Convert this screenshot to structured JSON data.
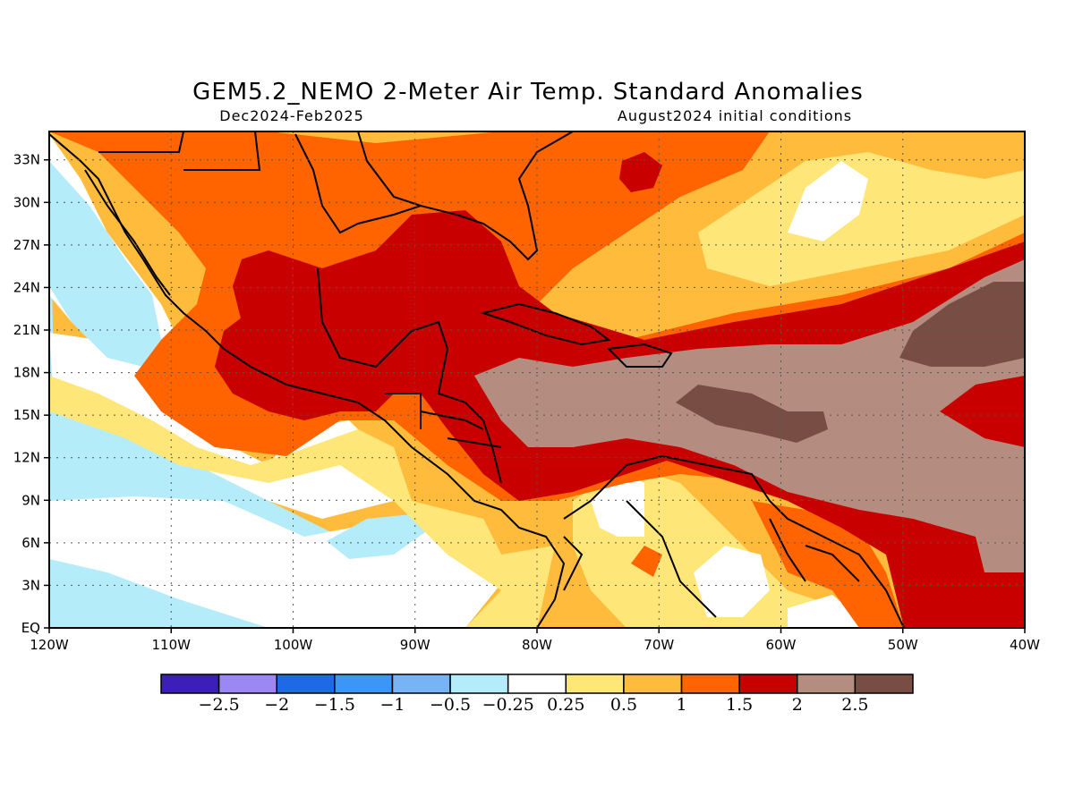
{
  "figure": {
    "title": "GEM5.2_NEMO 2-Meter Air Temp. Standard Anomalies",
    "period": "Dec2024-Feb2025",
    "init": "August2024 initial conditions"
  },
  "map": {
    "lon_range": [
      -120,
      -40
    ],
    "lat_range": [
      0,
      35
    ],
    "grid": "dotted",
    "lon_labels": [
      "120W",
      "110W",
      "100W",
      "90W",
      "80W",
      "70W",
      "60W",
      "50W",
      "40W"
    ],
    "lon_values": [
      -120,
      -110,
      -100,
      -90,
      -80,
      -70,
      -60,
      -50,
      -40
    ],
    "lat_labels": [
      "EQ",
      "3N",
      "6N",
      "9N",
      "12N",
      "15N",
      "18N",
      "21N",
      "24N",
      "27N",
      "30N",
      "33N"
    ],
    "lat_values": [
      0,
      3,
      6,
      9,
      12,
      15,
      18,
      21,
      24,
      27,
      30,
      33
    ]
  },
  "colorbar": {
    "colors": [
      "#3b1fb8",
      "#9b88f5",
      "#1e6ae6",
      "#3c96f5",
      "#78b4f5",
      "#b4ecfa",
      "#ffffff",
      "#ffe679",
      "#ffbb3c",
      "#ff6400",
      "#c80000",
      "#b48c80",
      "#784e44"
    ],
    "labels": [
      "-2.5",
      "-2",
      "-1.5",
      "-1",
      "-0.5",
      "-0.25",
      "0.25",
      "0.5",
      "1",
      "1.5",
      "2",
      "2.5"
    ]
  }
}
